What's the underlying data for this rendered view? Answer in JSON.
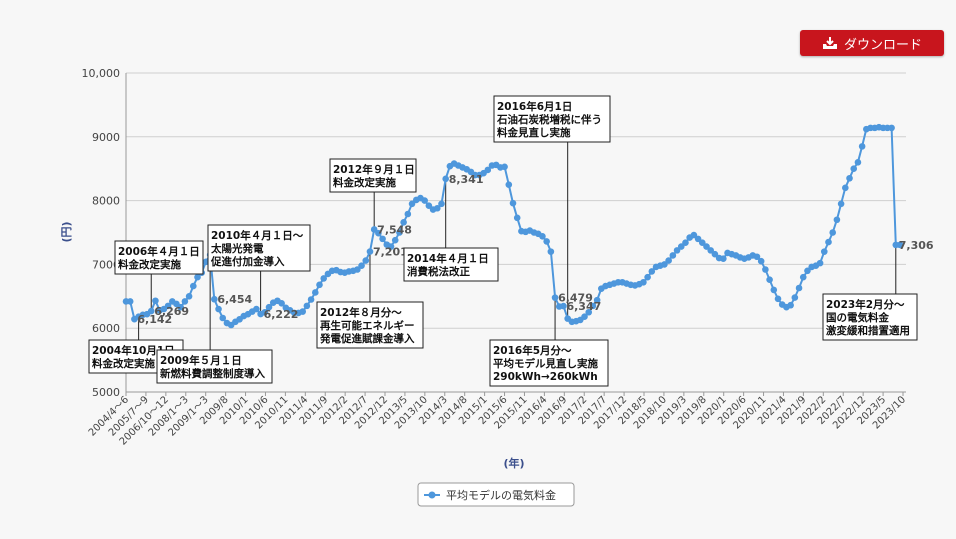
{
  "download_button": {
    "label": "ダウンロード",
    "icon": "download-tray-icon"
  },
  "chart_data": {
    "type": "line",
    "ylabel": "(円)",
    "xlabel": "(年)",
    "ylim": [
      5000,
      10000
    ],
    "yticks": [
      5000,
      6000,
      7000,
      8000,
      9000,
      10000
    ],
    "ytick_labels": [
      "5000",
      "6000",
      "7000",
      "8000",
      "9000",
      "10,000"
    ],
    "xtick_labels": [
      "2004/4～6",
      "2005/7～9",
      "2006/10～12",
      "2008/1～3",
      "2009/1～3",
      "2009/8",
      "2010/1",
      "2010/6",
      "2010/11",
      "2011/4",
      "2011/9",
      "2012/2",
      "2012/7",
      "2012/12",
      "2013/5",
      "2013/10",
      "2014/3",
      "2014/8",
      "2015/1",
      "2015/6",
      "2015/11",
      "2016/4",
      "2016/9",
      "2017/2",
      "2017/7",
      "2017/12",
      "2018/5",
      "2018/10",
      "2019/3",
      "2019/8",
      "2020/1",
      "2020/6",
      "2020/11",
      "2021/4",
      "2021/9",
      "2022/2",
      "2022/7",
      "2022/12",
      "2023/5",
      "2023/10"
    ],
    "legend": {
      "position": "bottom",
      "entries": [
        "平均モデルの電気料金"
      ]
    },
    "grid": true,
    "series": [
      {
        "name": "平均モデルの電気料金",
        "color": "#4e97dc",
        "values": [
          6420,
          6420,
          6142,
          6180,
          6210,
          6220,
          6269,
          6430,
          6280,
          6300,
          6350,
          6420,
          6380,
          6330,
          6420,
          6500,
          6660,
          6800,
          6870,
          7040,
          7150,
          6454,
          6300,
          6160,
          6080,
          6050,
          6100,
          6140,
          6190,
          6220,
          6260,
          6300,
          6222,
          6250,
          6330,
          6400,
          6430,
          6390,
          6320,
          6280,
          6240,
          6240,
          6260,
          6350,
          6450,
          6560,
          6680,
          6780,
          6850,
          6900,
          6910,
          6880,
          6870,
          6890,
          6900,
          6920,
          6980,
          7060,
          7201,
          7548,
          7490,
          7400,
          7310,
          7280,
          7380,
          7500,
          7660,
          7790,
          7950,
          8010,
          8040,
          8000,
          7920,
          7860,
          7880,
          7950,
          8341,
          8540,
          8580,
          8550,
          8520,
          8490,
          8450,
          8400,
          8400,
          8430,
          8480,
          8550,
          8560,
          8520,
          8530,
          8250,
          7960,
          7730,
          7520,
          7510,
          7530,
          7500,
          7480,
          7440,
          7360,
          7200,
          6479,
          6340,
          6347,
          6150,
          6100,
          6110,
          6130,
          6180,
          6250,
          6350,
          6440,
          6620,
          6660,
          6680,
          6700,
          6720,
          6720,
          6700,
          6680,
          6670,
          6690,
          6720,
          6800,
          6890,
          6960,
          6980,
          7000,
          7060,
          7140,
          7220,
          7280,
          7340,
          7420,
          7460,
          7400,
          7340,
          7280,
          7220,
          7160,
          7100,
          7090,
          7180,
          7160,
          7140,
          7110,
          7090,
          7110,
          7140,
          7120,
          7050,
          6920,
          6760,
          6600,
          6460,
          6370,
          6330,
          6360,
          6480,
          6630,
          6800,
          6900,
          6960,
          6980,
          7020,
          7200,
          7350,
          7500,
          7700,
          7950,
          8200,
          8350,
          8500,
          8600,
          8850,
          9120,
          9140,
          9140,
          9150,
          9140,
          9140,
          9140,
          7306,
          7306
        ]
      }
    ],
    "data_labels": [
      {
        "index": 2,
        "text": "6,142"
      },
      {
        "index": 6,
        "text": "6,269"
      },
      {
        "index": 21,
        "text": "6,454"
      },
      {
        "index": 32,
        "text": "6,222"
      },
      {
        "index": 58,
        "text": "7,201"
      },
      {
        "index": 59,
        "text": "7,548"
      },
      {
        "index": 76,
        "text": "8,341"
      },
      {
        "index": 102,
        "text": "6,479"
      },
      {
        "index": 104,
        "text": "6,347"
      },
      {
        "index": 183,
        "text": "7,306"
      }
    ],
    "annotations": [
      {
        "lines": [
          "2004年10月1日",
          "料金改定実施"
        ]
      },
      {
        "lines": [
          "2006年４月１日",
          "料金改定実施"
        ]
      },
      {
        "lines": [
          "2009年５月１日",
          "新燃料費調整制度導入"
        ]
      },
      {
        "lines": [
          "2010年４月１日～",
          "太陽光発電",
          "促進付加金導入"
        ]
      },
      {
        "lines": [
          "2012年９月１日",
          "料金改定実施"
        ]
      },
      {
        "lines": [
          "2012年８月分～",
          "再生可能エネルギー",
          "発電促進賦課金導入"
        ]
      },
      {
        "lines": [
          "2014年４月１日",
          "消費税法改正"
        ]
      },
      {
        "lines": [
          "2016年6月1日",
          "石油石炭税増税に伴う",
          "料金見直し実施"
        ]
      },
      {
        "lines": [
          "2016年5月分～",
          "平均モデル見直し実施",
          "290kWh→260kWh"
        ]
      },
      {
        "lines": [
          "2023年2月分～",
          "国の電気料金",
          "激変緩和措置適用"
        ]
      }
    ]
  }
}
